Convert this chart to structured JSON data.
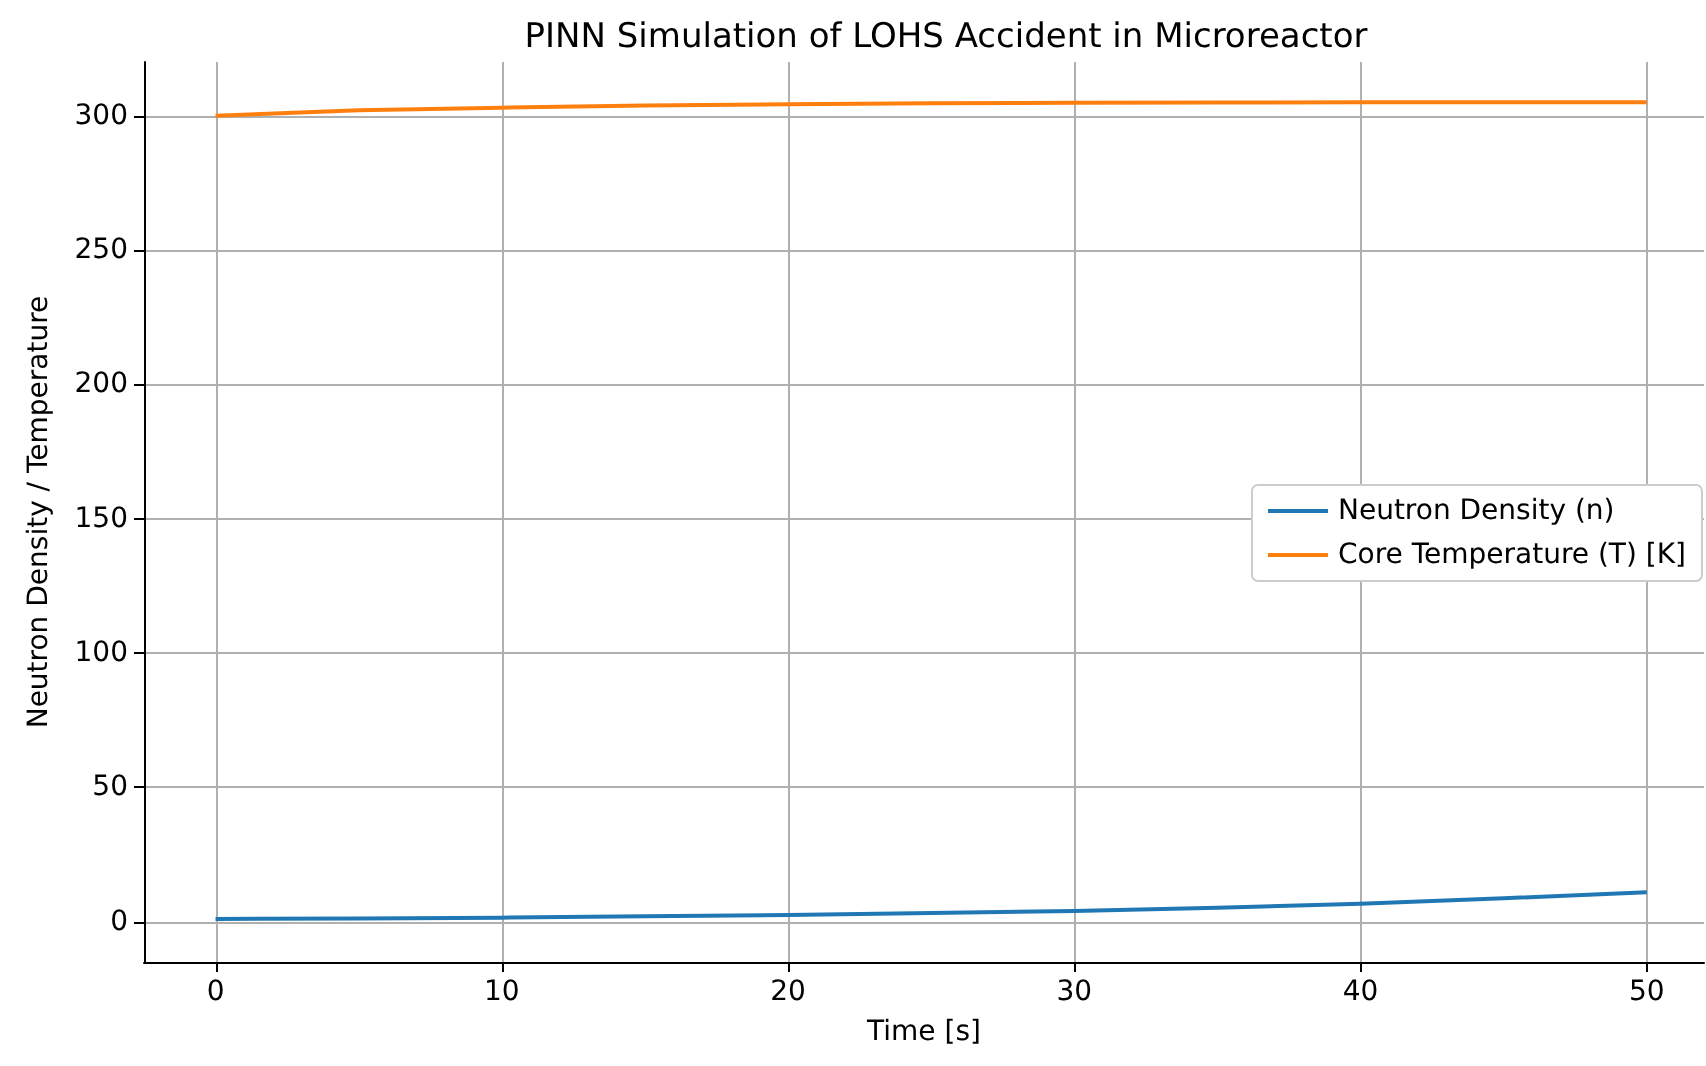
{
  "chart_data": {
    "type": "line",
    "title": "PINN Simulation of LOHS Accident in Microreactor",
    "xlabel": "Time [s]",
    "ylabel": "Neutron Density / Temperature",
    "x": [
      0,
      5,
      10,
      15,
      20,
      25,
      30,
      35,
      40,
      45,
      50
    ],
    "series": [
      {
        "name": "Neutron Density (n)",
        "color": "#1f77b4",
        "values": [
          1,
          1.2,
          1.5,
          2,
          2.5,
          3.2,
          4,
          5.2,
          6.7,
          8.7,
          11
        ]
      },
      {
        "name": "Core Temperature (T) [K]",
        "color": "#ff7f0e",
        "values": [
          300,
          302,
          303,
          303.8,
          304.3,
          304.6,
          304.8,
          304.9,
          305,
          305,
          305
        ]
      }
    ],
    "xlim": [
      -2.5,
      52
    ],
    "xticks": [
      0,
      10,
      20,
      30,
      40,
      50
    ],
    "ylim": [
      -15,
      320
    ],
    "yticks": [
      0,
      50,
      100,
      150,
      200,
      250,
      300
    ],
    "grid": true,
    "legend": "right",
    "marker": "none",
    "line_style": "solid"
  }
}
